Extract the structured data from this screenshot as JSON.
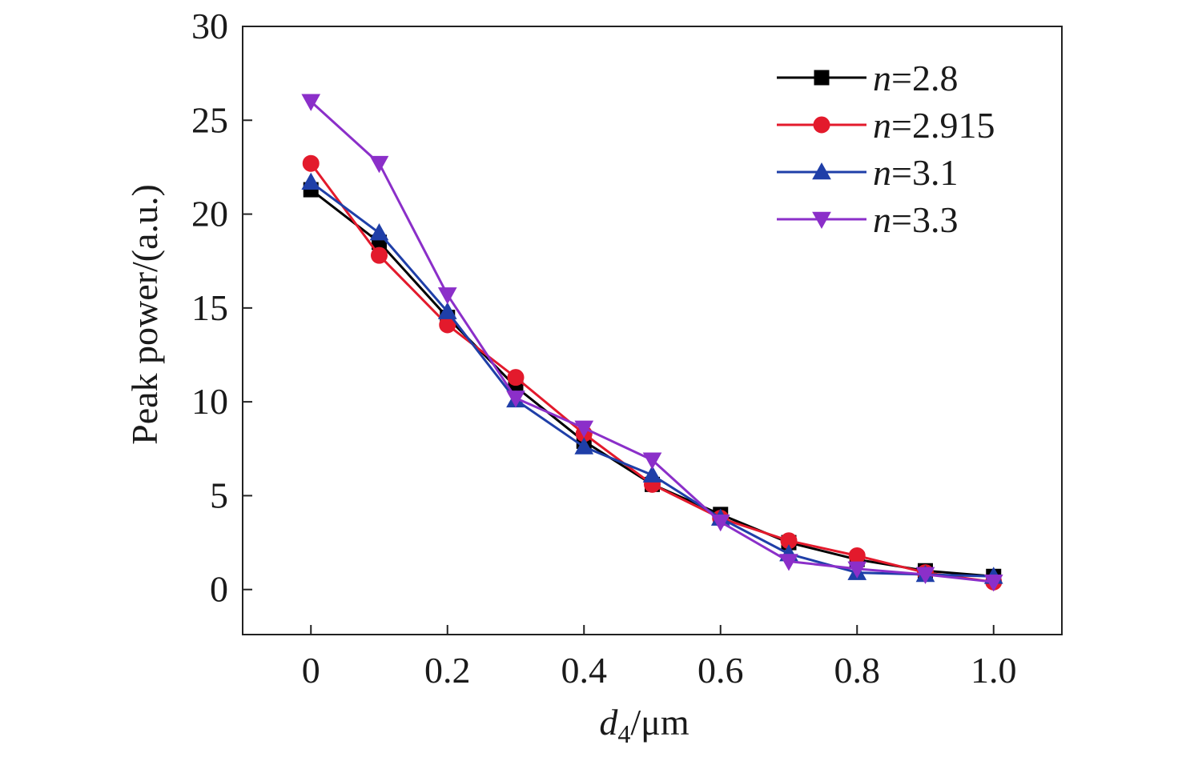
{
  "chart_data": {
    "type": "line",
    "xlabel": {
      "var": "d",
      "sub": "4",
      "unit": "/μm"
    },
    "ylabel": "Peak power/(a.u.)",
    "xlim": [
      -0.1,
      1.1
    ],
    "ylim": [
      -2.4,
      30
    ],
    "x_ticks": [
      0,
      0.2,
      0.4,
      0.6,
      0.8,
      1.0
    ],
    "x_tick_labels": [
      "0",
      "0.2",
      "0.4",
      "0.6",
      "0.8",
      "1.0"
    ],
    "y_ticks": [
      0,
      5,
      10,
      15,
      20,
      25,
      30
    ],
    "y_tick_labels": [
      "0",
      "5",
      "10",
      "15",
      "20",
      "25",
      "30"
    ],
    "legend_position": "top-right",
    "grid": false,
    "x": [
      0,
      0.1,
      0.2,
      0.3,
      0.4,
      0.5,
      0.6,
      0.7,
      0.8,
      0.9,
      1.0
    ],
    "series": [
      {
        "name": "n=2.8",
        "name_var": "n",
        "name_val": "=2.8",
        "color": "#000000",
        "marker": "square",
        "values": [
          21.3,
          18.5,
          14.5,
          10.8,
          7.9,
          5.6,
          4.0,
          2.5,
          1.6,
          1.0,
          0.7
        ]
      },
      {
        "name": "n=2.915",
        "name_var": "n",
        "name_val": "=2.915",
        "color": "#e31a2c",
        "marker": "circle",
        "values": [
          22.7,
          17.8,
          14.1,
          11.3,
          8.3,
          5.6,
          3.8,
          2.6,
          1.8,
          0.9,
          0.4
        ]
      },
      {
        "name": "n=3.1",
        "name_var": "n",
        "name_val": "=3.1",
        "color": "#1f3fa8",
        "marker": "triangle-up",
        "values": [
          21.7,
          19.0,
          14.8,
          10.1,
          7.6,
          6.1,
          3.8,
          1.9,
          0.9,
          0.8,
          0.7
        ]
      },
      {
        "name": "n=3.3",
        "name_var": "n",
        "name_val": "=3.3",
        "color": "#8b2fc9",
        "marker": "triangle-down",
        "values": [
          26.0,
          22.7,
          15.7,
          10.2,
          8.6,
          6.9,
          3.6,
          1.5,
          1.1,
          0.8,
          0.4
        ]
      }
    ]
  }
}
